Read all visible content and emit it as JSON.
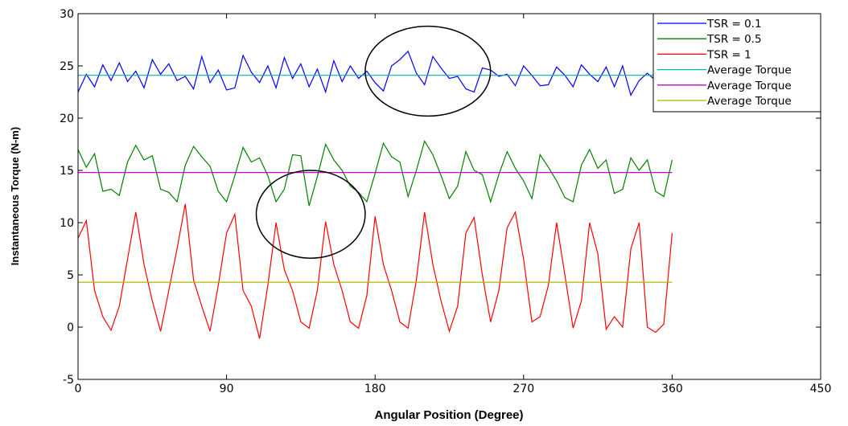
{
  "chart_data": {
    "type": "line",
    "title": "",
    "xlabel": "Angular Position (Degree)",
    "ylabel": "Instantaneous Torque (N-m)",
    "xlim": [
      0,
      450
    ],
    "ylim": [
      -5,
      30
    ],
    "xticks": [
      0,
      90,
      180,
      270,
      360,
      450
    ],
    "yticks": [
      -5,
      0,
      5,
      10,
      15,
      20,
      25,
      30
    ],
    "grid": false,
    "legend_position": "top-right",
    "series": [
      {
        "name": "TSR = 0.1",
        "color": "#0000ff",
        "x": [
          0,
          5,
          10,
          15,
          20,
          25,
          30,
          35,
          40,
          45,
          50,
          55,
          60,
          65,
          70,
          75,
          80,
          85,
          90,
          95,
          100,
          105,
          110,
          115,
          120,
          125,
          130,
          135,
          140,
          145,
          150,
          155,
          160,
          165,
          170,
          175,
          180,
          185,
          190,
          195,
          200,
          205,
          210,
          215,
          220,
          225,
          230,
          235,
          240,
          245,
          250,
          255,
          260,
          265,
          270,
          275,
          280,
          285,
          290,
          295,
          300,
          305,
          310,
          315,
          320,
          325,
          330,
          335,
          340,
          345,
          350,
          355,
          360
        ],
        "values": [
          22.5,
          24.2,
          23.0,
          25.1,
          23.6,
          25.3,
          23.5,
          24.5,
          22.9,
          25.6,
          24.2,
          25.2,
          23.6,
          24.0,
          22.8,
          25.9,
          23.4,
          24.6,
          22.7,
          22.9,
          26.0,
          24.4,
          23.4,
          25.0,
          22.9,
          25.8,
          23.8,
          25.2,
          23.0,
          24.7,
          22.5,
          25.5,
          23.5,
          25.0,
          23.8,
          24.5,
          23.4,
          22.6,
          25.0,
          25.6,
          26.4,
          24.3,
          23.2,
          25.9,
          24.8,
          23.8,
          24.0,
          22.8,
          22.5,
          24.8,
          24.6,
          24.0,
          24.2,
          23.1,
          25.0,
          24.1,
          23.1,
          23.2,
          24.9,
          24.1,
          23.0,
          25.1,
          24.2,
          23.5,
          24.9,
          23.0,
          25.0,
          22.2,
          23.6,
          24.3,
          23.6,
          24.6,
          24.3
        ]
      },
      {
        "name": "TSR = 0.5",
        "color": "#008000",
        "x": [
          0,
          5,
          10,
          15,
          20,
          25,
          30,
          35,
          40,
          45,
          50,
          55,
          60,
          65,
          70,
          75,
          80,
          85,
          90,
          95,
          100,
          105,
          110,
          115,
          120,
          125,
          130,
          135,
          140,
          145,
          150,
          155,
          160,
          165,
          170,
          175,
          180,
          185,
          190,
          195,
          200,
          205,
          210,
          215,
          220,
          225,
          230,
          235,
          240,
          245,
          250,
          255,
          260,
          265,
          270,
          275,
          280,
          285,
          290,
          295,
          300,
          305,
          310,
          315,
          320,
          325,
          330,
          335,
          340,
          345,
          350,
          355,
          360
        ],
        "values": [
          17.0,
          15.3,
          16.6,
          13.0,
          13.2,
          12.6,
          15.8,
          17.4,
          16.0,
          16.4,
          13.2,
          12.9,
          12.0,
          15.5,
          17.3,
          16.3,
          15.4,
          13.0,
          12.0,
          14.5,
          17.2,
          15.8,
          16.2,
          14.5,
          12.0,
          13.2,
          16.5,
          16.4,
          11.6,
          14.4,
          17.5,
          16.0,
          15.0,
          13.5,
          12.9,
          12.0,
          14.7,
          17.6,
          16.3,
          15.8,
          12.5,
          15.0,
          17.8,
          16.5,
          14.5,
          12.3,
          13.5,
          16.8,
          15.0,
          14.6,
          12.0,
          14.6,
          16.8,
          15.2,
          14.0,
          12.3,
          16.5,
          15.3,
          14.0,
          12.4,
          12.0,
          15.5,
          17.0,
          15.2,
          16.0,
          12.8,
          13.2,
          16.2,
          15.0,
          16.0,
          13.0,
          12.5,
          16.0
        ]
      },
      {
        "name": "TSR = 1",
        "color": "#ff0000",
        "x": [
          0,
          5,
          10,
          15,
          20,
          25,
          30,
          35,
          40,
          45,
          50,
          55,
          60,
          65,
          70,
          75,
          80,
          85,
          90,
          95,
          100,
          105,
          110,
          115,
          120,
          125,
          130,
          135,
          140,
          145,
          150,
          155,
          160,
          165,
          170,
          175,
          180,
          185,
          190,
          195,
          200,
          205,
          210,
          215,
          220,
          225,
          230,
          235,
          240,
          245,
          250,
          255,
          260,
          265,
          270,
          275,
          280,
          285,
          290,
          295,
          300,
          305,
          310,
          315,
          320,
          325,
          330,
          335,
          340,
          345,
          350,
          355,
          360
        ],
        "values": [
          8.5,
          10.2,
          3.5,
          1.0,
          -0.3,
          2.0,
          6.5,
          11.0,
          6.0,
          2.5,
          -0.4,
          3.5,
          7.5,
          11.8,
          4.5,
          2.0,
          -0.4,
          4.0,
          9.0,
          10.8,
          3.5,
          2.0,
          -1.1,
          4.0,
          10.0,
          5.5,
          3.5,
          0.5,
          -0.1,
          3.5,
          10.1,
          6.0,
          3.5,
          0.5,
          -0.1,
          3.0,
          10.6,
          6.0,
          3.5,
          0.5,
          -0.1,
          4.5,
          11.0,
          6.0,
          2.5,
          -0.4,
          2.0,
          9.0,
          10.5,
          5.0,
          0.5,
          3.5,
          9.5,
          11.0,
          6.5,
          0.5,
          1.0,
          4.0,
          10.0,
          5.0,
          -0.1,
          2.5,
          10.0,
          7.0,
          -0.2,
          1.0,
          0.0,
          7.5,
          10.0,
          0.0,
          -0.5,
          0.3,
          9.0
        ]
      },
      {
        "name": "Average Torque",
        "color": "#00b3b3",
        "x": [
          0,
          360
        ],
        "values": [
          24.1,
          24.1
        ]
      },
      {
        "name": "Average Torque",
        "color": "#cc00cc",
        "x": [
          0,
          360
        ],
        "values": [
          14.8,
          14.8
        ]
      },
      {
        "name": "Average Torque",
        "color": "#b3b300",
        "x": [
          0,
          360
        ],
        "values": [
          4.3,
          4.3
        ]
      }
    ],
    "annotations": [
      {
        "type": "ellipse",
        "cx": 212,
        "cy": 24.5,
        "rx": 38,
        "ry": 4.3
      },
      {
        "type": "ellipse",
        "cx": 141,
        "cy": 10.8,
        "rx": 33,
        "ry": 4.2
      }
    ]
  }
}
